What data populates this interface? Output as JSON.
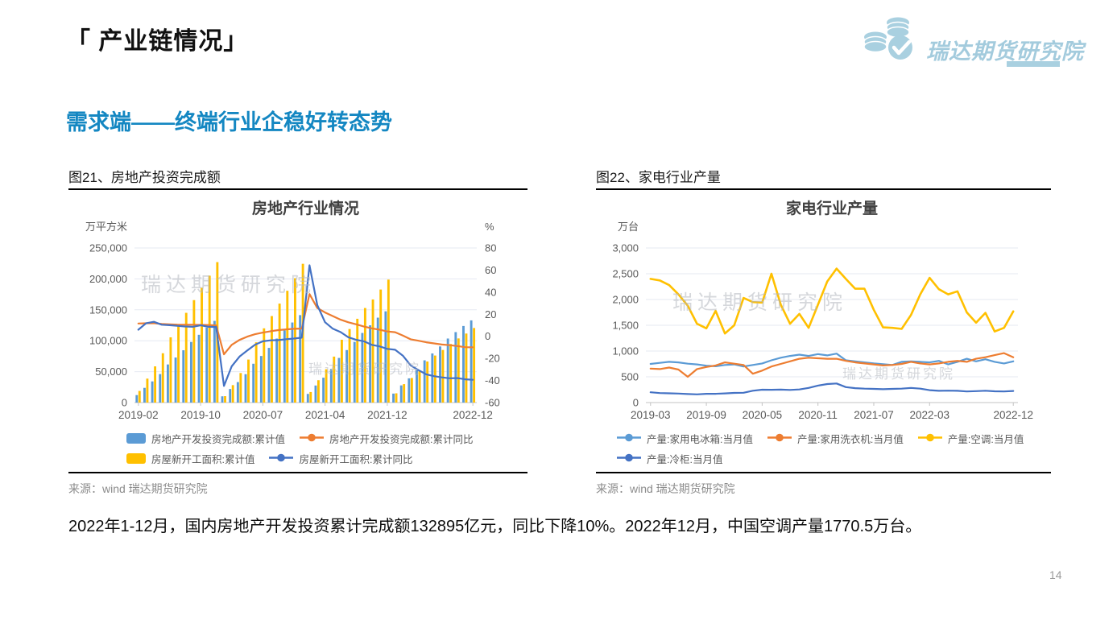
{
  "page": {
    "title": "「 产业链情况」",
    "subtitle": "需求端——终端行业企稳好转态势",
    "summary": "2022年1-12月，国内房地产开发投资累计完成额132895亿元，同比下降10%。2022年12月，中国空调产量1770.5万台。",
    "page_number": "14",
    "logo_text": "瑞达期货研究院",
    "watermark": "瑞达期货研究院"
  },
  "colors": {
    "accent_blue": "#1487c2",
    "logo_blue": "#a9d0e0",
    "bar_blue": "#5B9BD5",
    "bar_yellow": "#FFC000",
    "line_orange": "#ED7D31",
    "line_blue": "#4472C4",
    "axis_text": "#595959",
    "gridline": "#e6eaf2"
  },
  "figures": [
    {
      "caption": "图21、房地产投资完成额",
      "source": "来源：wind   瑞达期货研究院"
    },
    {
      "caption": "图22、家电行业产量",
      "source": "来源：wind   瑞达期货研究院"
    }
  ],
  "chart_data": [
    {
      "type": "bar",
      "title": "房地产行业情况",
      "unit_left": "万平方米",
      "unit_right": "%",
      "left_axis": {
        "min": 0,
        "max": 250000,
        "step": 50000
      },
      "right_axis": {
        "min": -60,
        "max": 80,
        "step": 20
      },
      "grid": true,
      "legend_position": "bottom",
      "categories": [
        "2019-02",
        "2019-03",
        "2019-04",
        "2019-05",
        "2019-06",
        "2019-07",
        "2019-08",
        "2019-09",
        "2019-10",
        "2019-11",
        "2019-12",
        "2020-02",
        "2020-03",
        "2020-04",
        "2020-05",
        "2020-06",
        "2020-07",
        "2020-08",
        "2020-09",
        "2020-10",
        "2020-11",
        "2020-12",
        "2021-02",
        "2021-03",
        "2021-04",
        "2021-05",
        "2021-06",
        "2021-07",
        "2021-08",
        "2021-09",
        "2021-10",
        "2021-11",
        "2021-12",
        "2022-02",
        "2022-03",
        "2022-04",
        "2022-05",
        "2022-06",
        "2022-07",
        "2022-08",
        "2022-09",
        "2022-10",
        "2022-11",
        "2022-12"
      ],
      "x_tick_indices": [
        0,
        8,
        16,
        24,
        32,
        43
      ],
      "series": [
        {
          "name": "房地产开发投资完成额:累计值",
          "kind": "bar",
          "axis": "left",
          "color": "#5B9BD5",
          "values": [
            12090,
            23803,
            34217,
            46075,
            61609,
            72843,
            84589,
            98008,
            109603,
            121265,
            132101,
            10115,
            21963,
            33103,
            45920,
            62780,
            75325,
            88454,
            103484,
            116556,
            129492,
            141443,
            13986,
            27576,
            40240,
            54318,
            72179,
            84895,
            98060,
            112568,
            124934,
            137314,
            147602,
            14499,
            27765,
            39154,
            52134,
            68314,
            79462,
            90809,
            103559,
            113945,
            123863,
            132895
          ]
        },
        {
          "name": "房屋新开工面积:累计值",
          "kind": "bar",
          "axis": "left",
          "color": "#FFC000",
          "values": [
            18814,
            38728,
            58552,
            79784,
            105509,
            125716,
            145133,
            165696,
            185634,
            205194,
            227154,
            10367,
            28194,
            47778,
            69572,
            97490,
            120059,
            139908,
            160062,
            180808,
            201090,
            224433,
            17037,
            36163,
            53905,
            74349,
            101608,
            118948,
            135502,
            152944,
            166736,
            182820,
            198895,
            14967,
            29838,
            39739,
            51628,
            66423,
            76067,
            85062,
            94767,
            103722,
            111632,
            120587
          ]
        },
        {
          "name": "房地产开发投资完成额:累计同比",
          "kind": "line",
          "axis": "right",
          "color": "#ED7D31",
          "values": [
            11.6,
            11.8,
            11.9,
            11.2,
            10.9,
            10.6,
            10.5,
            10.5,
            10.3,
            10.2,
            9.9,
            -16.3,
            -7.7,
            -3.3,
            -0.3,
            1.9,
            3.4,
            4.6,
            5.6,
            6.3,
            6.8,
            7.0,
            38.3,
            25.6,
            21.6,
            18.3,
            15.0,
            12.7,
            10.9,
            8.8,
            7.2,
            6.0,
            4.4,
            3.7,
            0.7,
            -2.7,
            -4.0,
            -5.4,
            -6.4,
            -7.4,
            -8.0,
            -8.8,
            -9.8,
            -10.0
          ]
        },
        {
          "name": "房屋新开工面积:累计同比",
          "kind": "line",
          "axis": "right",
          "color": "#4472C4",
          "values": [
            6.0,
            11.9,
            13.1,
            10.5,
            10.1,
            9.5,
            8.9,
            8.6,
            10.0,
            8.6,
            8.5,
            -44.9,
            -27.2,
            -18.4,
            -12.8,
            -7.6,
            -4.5,
            -3.6,
            -3.4,
            -2.6,
            -2.0,
            -1.2,
            64.3,
            28.2,
            12.8,
            6.9,
            3.8,
            -0.9,
            -3.2,
            -4.5,
            -7.7,
            -9.1,
            -11.4,
            -12.2,
            -17.5,
            -26.3,
            -30.6,
            -34.4,
            -36.1,
            -37.2,
            -38.0,
            -37.8,
            -38.9,
            -39.4
          ]
        }
      ],
      "legend_rows": [
        [
          0,
          2
        ],
        [
          1,
          3
        ]
      ]
    },
    {
      "type": "line",
      "title": "家电行业产量",
      "unit_left": "万台",
      "left_axis": {
        "min": 0,
        "max": 3000,
        "step": 500
      },
      "grid": true,
      "legend_position": "bottom",
      "categories": [
        "2019-03",
        "2019-04",
        "2019-05",
        "2019-06",
        "2019-07",
        "2019-08",
        "2019-09",
        "2019-10",
        "2019-11",
        "2019-12",
        "2020-03",
        "2020-04",
        "2020-05",
        "2020-06",
        "2020-07",
        "2020-08",
        "2020-09",
        "2020-10",
        "2020-11",
        "2020-12",
        "2021-03",
        "2021-04",
        "2021-05",
        "2021-06",
        "2021-07",
        "2021-08",
        "2021-09",
        "2021-10",
        "2021-11",
        "2021-12",
        "2022-03",
        "2022-04",
        "2022-05",
        "2022-06",
        "2022-07",
        "2022-08",
        "2022-09",
        "2022-10",
        "2022-11",
        "2022-12"
      ],
      "x_tick_indices": [
        0,
        6,
        12,
        18,
        24,
        30,
        39
      ],
      "series": [
        {
          "name": "产量:家用电冰箱:当月值",
          "kind": "line",
          "axis": "left",
          "color": "#5B9BD5",
          "values": [
            750,
            770,
            790,
            780,
            755,
            740,
            715,
            705,
            730,
            740,
            700,
            730,
            760,
            820,
            870,
            905,
            930,
            905,
            940,
            915,
            950,
            820,
            800,
            780,
            760,
            745,
            730,
            790,
            800,
            790,
            780,
            810,
            740,
            790,
            850,
            800,
            840,
            790,
            760,
            800
          ]
        },
        {
          "name": "产量:家用洗衣机:当月值",
          "kind": "line",
          "axis": "left",
          "color": "#ED7D31",
          "values": [
            660,
            650,
            680,
            640,
            500,
            650,
            690,
            720,
            780,
            755,
            730,
            560,
            620,
            700,
            750,
            800,
            850,
            870,
            860,
            850,
            850,
            810,
            780,
            760,
            740,
            720,
            730,
            750,
            790,
            760,
            740,
            760,
            790,
            810,
            790,
            850,
            880,
            920,
            960,
            880
          ]
        },
        {
          "name": "产量:空调:当月值",
          "kind": "line",
          "axis": "left",
          "color": "#FFC000",
          "width": 2.6,
          "values": [
            2400,
            2370,
            2280,
            2100,
            1880,
            1530,
            1440,
            1780,
            1340,
            1500,
            2030,
            1950,
            1940,
            2500,
            1900,
            1530,
            1720,
            1450,
            1900,
            2350,
            2600,
            2400,
            2210,
            2210,
            1800,
            1460,
            1450,
            1430,
            1700,
            2100,
            2420,
            2200,
            2100,
            2160,
            1750,
            1550,
            1740,
            1380,
            1450,
            1770.5
          ]
        },
        {
          "name": "产量:冷柜:当月值",
          "kind": "line",
          "axis": "left",
          "color": "#4472C4",
          "values": [
            200,
            185,
            180,
            175,
            165,
            160,
            170,
            170,
            178,
            188,
            190,
            230,
            250,
            248,
            252,
            245,
            255,
            285,
            330,
            360,
            370,
            300,
            280,
            270,
            265,
            260,
            265,
            270,
            285,
            270,
            240,
            228,
            232,
            228,
            215,
            222,
            230,
            218,
            215,
            225
          ]
        }
      ],
      "legend_rows": [
        [
          0,
          1,
          2
        ],
        [
          3
        ]
      ]
    }
  ]
}
